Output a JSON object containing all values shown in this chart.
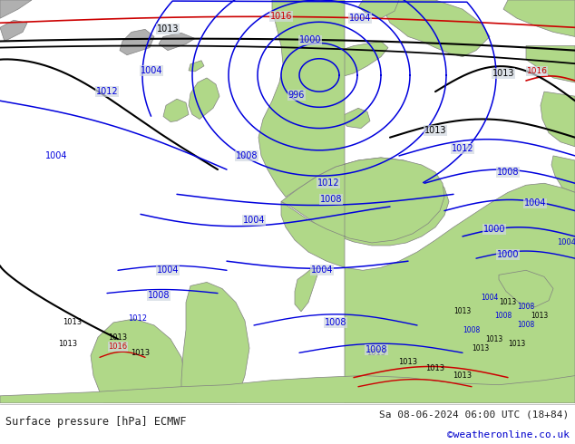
{
  "title_left": "Surface pressure [hPa] ECMWF",
  "title_right": "Sa 08-06-2024 06:00 UTC (18+84)",
  "credit": "©weatheronline.co.uk",
  "sea_color": "#d0d8e0",
  "land_color": "#b0d888",
  "gray_land_color": "#b0b0b0",
  "coast_color": "#808080",
  "figsize": [
    6.34,
    4.9
  ],
  "dpi": 100,
  "footer_bg": "#ffffff",
  "text_color": "#222222",
  "credit_color": "#0000cc",
  "isobar_blue": "#0000dd",
  "isobar_black": "#000000",
  "isobar_red": "#cc0000",
  "label_fontsize": 7.0,
  "title_fontsize": 8.5,
  "credit_fontsize": 8.0
}
